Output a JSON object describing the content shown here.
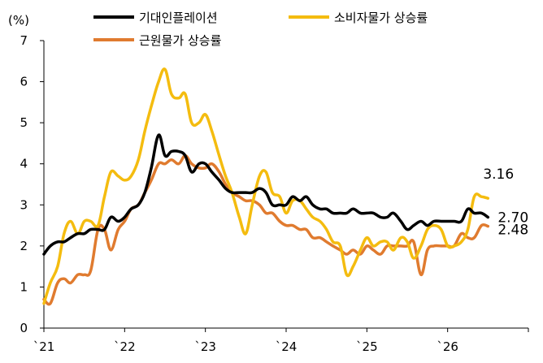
{
  "chart_data": {
    "type": "line",
    "title": "",
    "unit_label": "(%)",
    "ylim": [
      0,
      7
    ],
    "yticks": [
      "0",
      "1",
      "2",
      "3",
      "4",
      "5",
      "6",
      "7"
    ],
    "xlim": [
      2021.0,
      2027.0
    ],
    "xticks": [
      {
        "value": 2021.0,
        "label": "`21"
      },
      {
        "value": 2022.0,
        "label": "`22"
      },
      {
        "value": 2023.0,
        "label": "`23"
      },
      {
        "value": 2024.0,
        "label": "`24"
      },
      {
        "value": 2025.0,
        "label": "`25"
      },
      {
        "value": 2026.0,
        "label": "`26"
      }
    ],
    "grid": false,
    "legend_position": "top",
    "series": [
      {
        "name": "기대인플레이션",
        "color": "#000000",
        "end_label": "2.70",
        "x": [
          2021.0,
          2021.08,
          2021.17,
          2021.25,
          2021.33,
          2021.42,
          2021.5,
          2021.58,
          2021.67,
          2021.75,
          2021.83,
          2021.92,
          2022.0,
          2022.08,
          2022.17,
          2022.25,
          2022.33,
          2022.42,
          2022.5,
          2022.58,
          2022.67,
          2022.75,
          2022.83,
          2022.92,
          2023.0,
          2023.08,
          2023.17,
          2023.25,
          2023.33,
          2023.42,
          2023.5,
          2023.58,
          2023.67,
          2023.75,
          2023.83,
          2023.92,
          2024.0,
          2024.08,
          2024.17,
          2024.25,
          2024.33,
          2024.42,
          2024.5,
          2024.58,
          2024.67,
          2024.75,
          2024.83,
          2024.92,
          2025.0,
          2025.08,
          2025.17,
          2025.25,
          2025.33,
          2025.42,
          2025.5,
          2025.58,
          2025.67,
          2025.75,
          2025.83,
          2025.92,
          2026.0,
          2026.08,
          2026.17,
          2026.25,
          2026.33,
          2026.42,
          2026.5
        ],
        "values": [
          1.8,
          2.0,
          2.1,
          2.1,
          2.2,
          2.3,
          2.3,
          2.4,
          2.4,
          2.4,
          2.7,
          2.6,
          2.7,
          2.9,
          3.0,
          3.3,
          3.9,
          4.7,
          4.2,
          4.3,
          4.3,
          4.2,
          3.8,
          4.0,
          4.0,
          3.8,
          3.6,
          3.4,
          3.3,
          3.3,
          3.3,
          3.3,
          3.4,
          3.3,
          3.0,
          3.0,
          3.0,
          3.2,
          3.1,
          3.2,
          3.0,
          2.9,
          2.9,
          2.8,
          2.8,
          2.8,
          2.9,
          2.8,
          2.8,
          2.8,
          2.7,
          2.7,
          2.8,
          2.6,
          2.4,
          2.5,
          2.6,
          2.5,
          2.6,
          2.6,
          2.6,
          2.6,
          2.6,
          2.9,
          2.8,
          2.8,
          2.7
        ]
      },
      {
        "name": "소비자물가 상승률",
        "color": "#f4bc0f",
        "end_label": "3.16",
        "x": [
          2021.0,
          2021.08,
          2021.17,
          2021.25,
          2021.33,
          2021.42,
          2021.5,
          2021.58,
          2021.67,
          2021.75,
          2021.83,
          2021.92,
          2022.0,
          2022.08,
          2022.17,
          2022.25,
          2022.33,
          2022.42,
          2022.5,
          2022.58,
          2022.67,
          2022.75,
          2022.83,
          2022.92,
          2023.0,
          2023.08,
          2023.17,
          2023.25,
          2023.33,
          2023.42,
          2023.5,
          2023.58,
          2023.67,
          2023.75,
          2023.83,
          2023.92,
          2024.0,
          2024.08,
          2024.17,
          2024.25,
          2024.33,
          2024.42,
          2024.5,
          2024.58,
          2024.67,
          2024.75,
          2024.83,
          2024.92,
          2025.0,
          2025.08,
          2025.17,
          2025.25,
          2025.33,
          2025.42,
          2025.5,
          2025.58,
          2025.67,
          2025.75,
          2025.83,
          2025.92,
          2026.0,
          2026.08,
          2026.17,
          2026.25,
          2026.33,
          2026.42,
          2026.5
        ],
        "values": [
          0.6,
          1.1,
          1.5,
          2.3,
          2.6,
          2.3,
          2.6,
          2.6,
          2.5,
          3.2,
          3.8,
          3.7,
          3.6,
          3.7,
          4.1,
          4.8,
          5.4,
          6.0,
          6.3,
          5.7,
          5.6,
          5.7,
          5.0,
          5.0,
          5.2,
          4.8,
          4.2,
          3.7,
          3.3,
          2.7,
          2.3,
          3.0,
          3.7,
          3.8,
          3.3,
          3.2,
          2.8,
          3.1,
          3.1,
          2.9,
          2.7,
          2.6,
          2.4,
          2.1,
          2.0,
          1.3,
          1.5,
          1.9,
          2.2,
          2.0,
          2.1,
          2.1,
          1.9,
          2.2,
          2.1,
          1.7,
          2.0,
          2.4,
          2.5,
          2.4,
          2.0,
          2.0,
          2.1,
          2.4,
          3.2,
          3.2,
          3.16
        ]
      },
      {
        "name": "근원물가 상승률",
        "color": "#e07b2f",
        "end_label": "2.48",
        "x": [
          2021.0,
          2021.08,
          2021.17,
          2021.25,
          2021.33,
          2021.42,
          2021.5,
          2021.58,
          2021.67,
          2021.75,
          2021.83,
          2021.92,
          2022.0,
          2022.08,
          2022.17,
          2022.25,
          2022.33,
          2022.42,
          2022.5,
          2022.58,
          2022.67,
          2022.75,
          2022.83,
          2022.92,
          2023.0,
          2023.08,
          2023.17,
          2023.25,
          2023.33,
          2023.42,
          2023.5,
          2023.58,
          2023.67,
          2023.75,
          2023.83,
          2023.92,
          2024.0,
          2024.08,
          2024.17,
          2024.25,
          2024.33,
          2024.42,
          2024.5,
          2024.58,
          2024.67,
          2024.75,
          2024.83,
          2024.92,
          2025.0,
          2025.08,
          2025.17,
          2025.25,
          2025.33,
          2025.42,
          2025.5,
          2025.58,
          2025.67,
          2025.75,
          2025.83,
          2025.92,
          2026.0,
          2026.08,
          2026.17,
          2026.25,
          2026.33,
          2026.42,
          2026.5
        ],
        "values": [
          0.7,
          0.6,
          1.1,
          1.2,
          1.1,
          1.3,
          1.3,
          1.4,
          2.4,
          2.4,
          1.9,
          2.4,
          2.6,
          2.9,
          3.0,
          3.3,
          3.6,
          4.0,
          4.0,
          4.1,
          4.0,
          4.2,
          4.0,
          3.9,
          3.9,
          4.0,
          3.8,
          3.5,
          3.3,
          3.2,
          3.1,
          3.1,
          3.0,
          2.8,
          2.8,
          2.6,
          2.5,
          2.5,
          2.4,
          2.4,
          2.2,
          2.2,
          2.1,
          2.0,
          1.9,
          1.8,
          1.9,
          1.8,
          2.0,
          1.9,
          1.8,
          2.0,
          2.0,
          2.0,
          2.0,
          2.1,
          1.3,
          1.9,
          2.0,
          2.0,
          2.0,
          2.0,
          2.3,
          2.2,
          2.2,
          2.5,
          2.48
        ]
      }
    ]
  }
}
